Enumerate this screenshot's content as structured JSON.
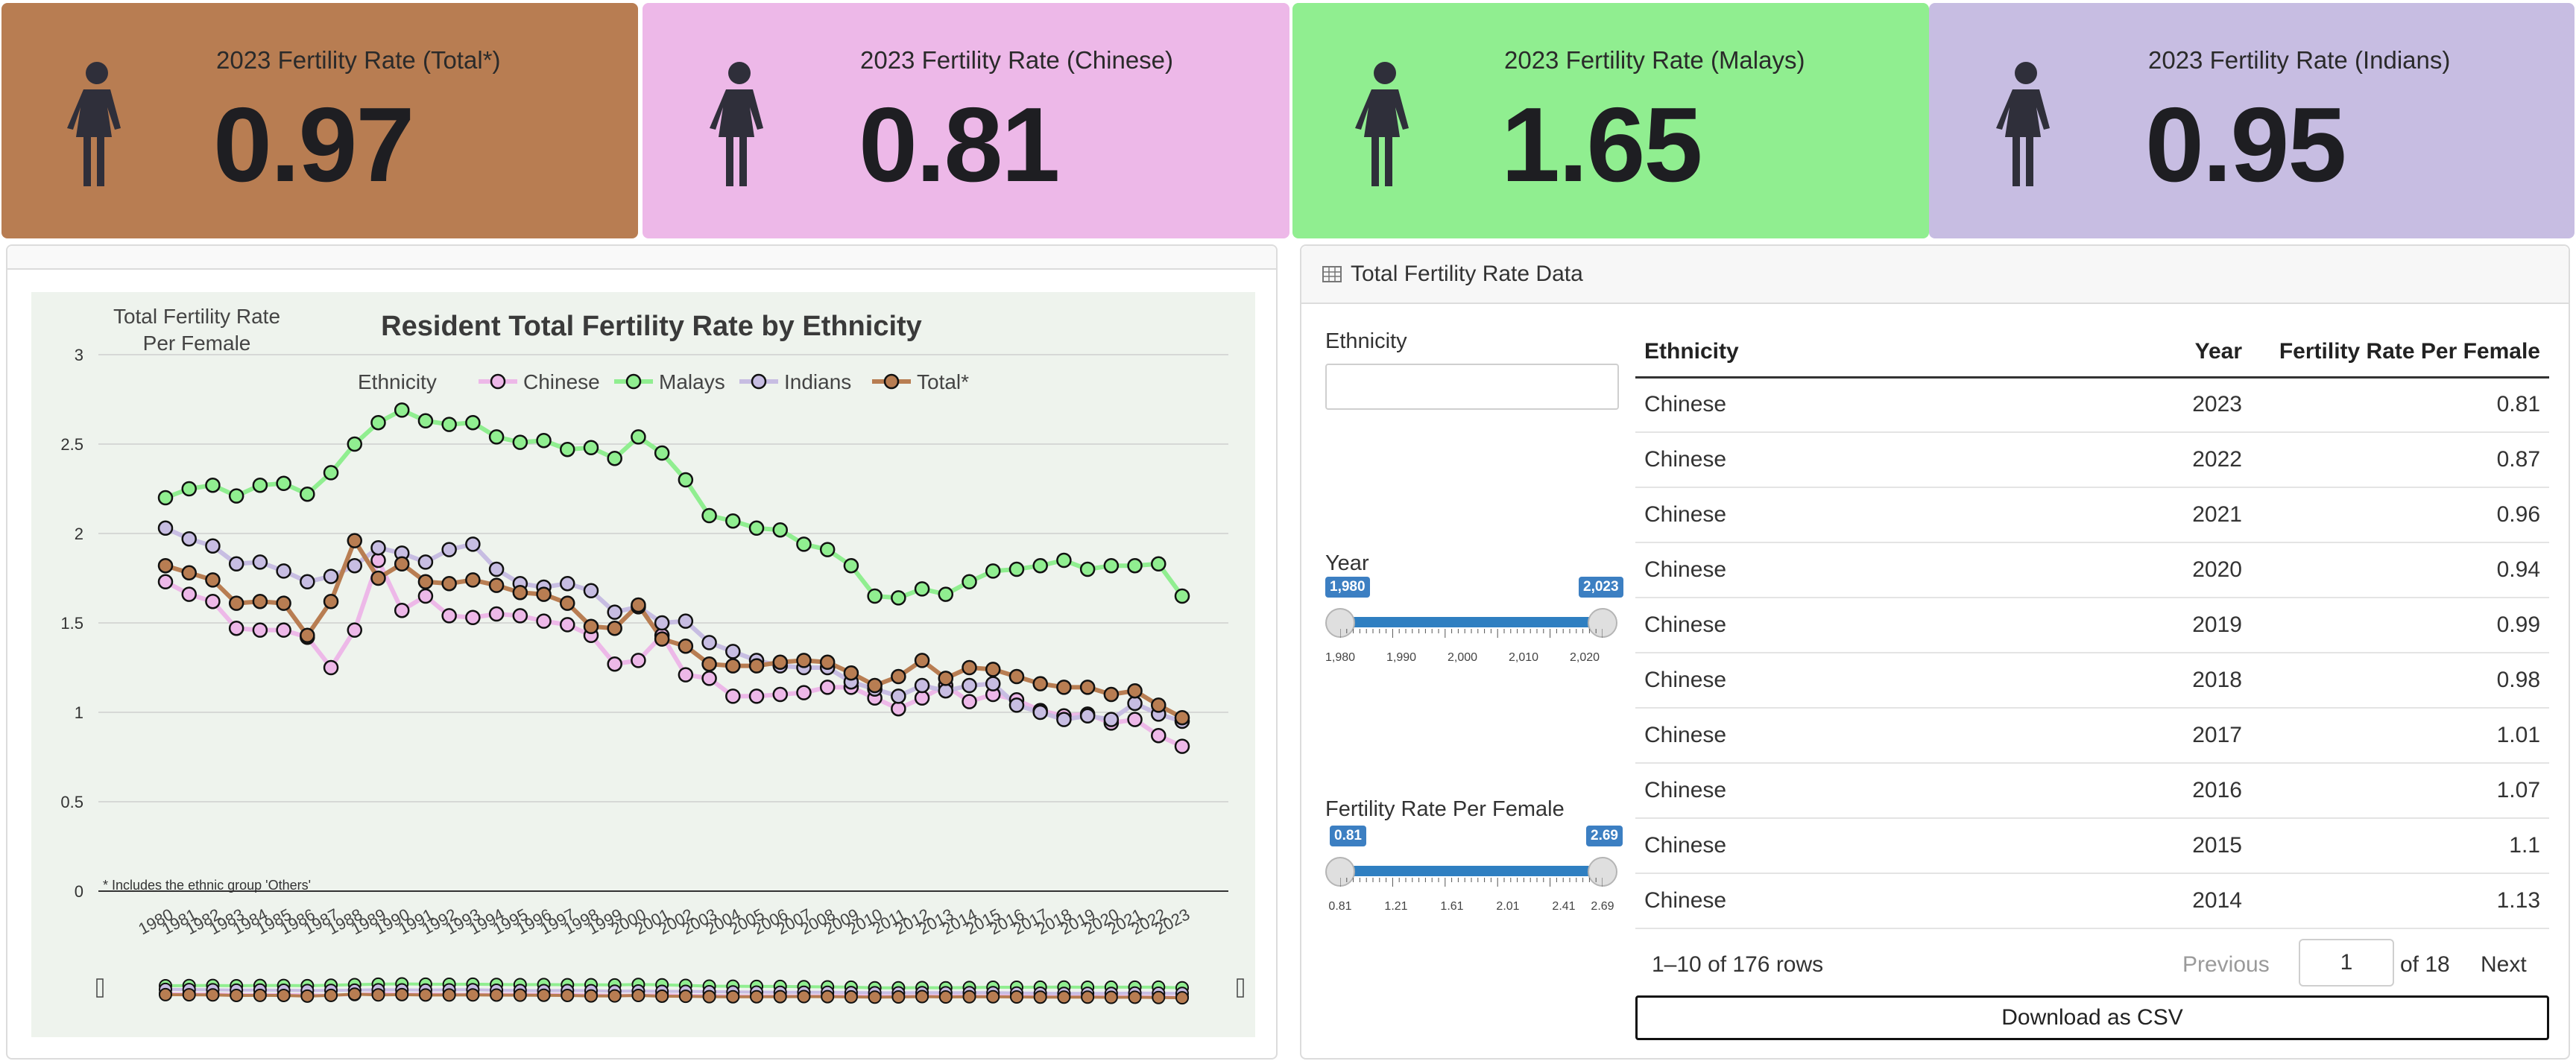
{
  "kpis": [
    {
      "title": "2023 Fertility Rate (Total*)",
      "value": "0.97",
      "bg": "#b87d52"
    },
    {
      "title": "2023 Fertility Rate (Chinese)",
      "value": "0.81",
      "bg": "#edb8e8"
    },
    {
      "title": "2023 Fertility Rate (Malays)",
      "value": "1.65",
      "bg": "#90ee90"
    },
    {
      "title": "2023 Fertility Rate (Indians)",
      "value": "0.95",
      "bg": "#c7bde2"
    }
  ],
  "person_icon_color": "#2f2f3a",
  "table_panel": {
    "title": "Total Fertility Rate Data",
    "filters": {
      "ethnicity_label": "Ethnicity",
      "year_label": "Year",
      "year_min": "1,980",
      "year_max": "2,023",
      "year_ticks": [
        "1,980",
        "1,990",
        "2,000",
        "2,010",
        "2,020"
      ],
      "rate_label": "Fertility Rate Per Female",
      "rate_min": "0.81",
      "rate_max": "2.69",
      "rate_ticks": [
        "0.81",
        "1.21",
        "1.61",
        "2.01",
        "2.41",
        "2.69"
      ]
    },
    "columns": [
      "Ethnicity",
      "Year",
      "Fertility Rate Per Female"
    ],
    "rows": [
      [
        "Chinese",
        "2023",
        "0.81"
      ],
      [
        "Chinese",
        "2022",
        "0.87"
      ],
      [
        "Chinese",
        "2021",
        "0.96"
      ],
      [
        "Chinese",
        "2020",
        "0.94"
      ],
      [
        "Chinese",
        "2019",
        "0.99"
      ],
      [
        "Chinese",
        "2018",
        "0.98"
      ],
      [
        "Chinese",
        "2017",
        "1.01"
      ],
      [
        "Chinese",
        "2016",
        "1.07"
      ],
      [
        "Chinese",
        "2015",
        "1.1"
      ],
      [
        "Chinese",
        "2014",
        "1.13"
      ]
    ],
    "info": "1–10 of 176 rows",
    "prev": "Previous",
    "page": "1",
    "of_pages": "of 18",
    "next": "Next",
    "download": "Download as CSV"
  },
  "chart_data": {
    "type": "line",
    "title": "Resident Total Fertility Rate by Ethnicity",
    "ylabel": "Total Fertility Rate\nPer Female",
    "xlabel": "",
    "ylim": [
      0,
      3
    ],
    "yticks": [
      "0",
      "0.5",
      "1",
      "1.5",
      "2",
      "2.5",
      "3"
    ],
    "legend_title": "Ethnicity",
    "footnote": "* Includes the ethnic group 'Others'",
    "x": [
      1980,
      1981,
      1982,
      1983,
      1984,
      1985,
      1986,
      1987,
      1988,
      1989,
      1990,
      1991,
      1992,
      1993,
      1994,
      1995,
      1996,
      1997,
      1998,
      1999,
      2000,
      2001,
      2002,
      2003,
      2004,
      2005,
      2006,
      2007,
      2008,
      2009,
      2010,
      2011,
      2012,
      2013,
      2014,
      2015,
      2016,
      2017,
      2018,
      2019,
      2020,
      2021,
      2022,
      2023
    ],
    "series": [
      {
        "name": "Chinese",
        "color": "#edb8e8",
        "values": [
          1.73,
          1.66,
          1.62,
          1.47,
          1.46,
          1.46,
          1.42,
          1.25,
          1.46,
          1.85,
          1.57,
          1.65,
          1.54,
          1.53,
          1.55,
          1.54,
          1.51,
          1.49,
          1.43,
          1.27,
          1.29,
          1.43,
          1.21,
          1.19,
          1.09,
          1.09,
          1.1,
          1.11,
          1.14,
          1.14,
          1.08,
          1.02,
          1.08,
          1.15,
          1.06,
          1.1,
          1.07,
          1.01,
          0.98,
          0.99,
          0.94,
          0.96,
          0.87,
          0.81
        ]
      },
      {
        "name": "Malays",
        "color": "#90ee90",
        "values": [
          2.2,
          2.25,
          2.27,
          2.21,
          2.27,
          2.28,
          2.22,
          2.34,
          2.5,
          2.62,
          2.69,
          2.63,
          2.61,
          2.62,
          2.54,
          2.51,
          2.52,
          2.47,
          2.48,
          2.42,
          2.54,
          2.45,
          2.3,
          2.1,
          2.07,
          2.03,
          2.02,
          1.94,
          1.91,
          1.82,
          1.65,
          1.64,
          1.69,
          1.66,
          1.73,
          1.79,
          1.8,
          1.82,
          1.85,
          1.8,
          1.82,
          1.82,
          1.83,
          1.65
        ]
      },
      {
        "name": "Indians",
        "color": "#c7bde2",
        "values": [
          2.03,
          1.97,
          1.93,
          1.83,
          1.84,
          1.79,
          1.73,
          1.76,
          1.82,
          1.92,
          1.89,
          1.84,
          1.91,
          1.94,
          1.8,
          1.72,
          1.7,
          1.72,
          1.68,
          1.56,
          1.59,
          1.5,
          1.51,
          1.39,
          1.34,
          1.29,
          1.26,
          1.25,
          1.25,
          1.17,
          1.13,
          1.09,
          1.15,
          1.12,
          1.15,
          1.16,
          1.04,
          1.0,
          0.96,
          0.98,
          0.96,
          1.05,
          0.99,
          0.95
        ]
      },
      {
        "name": "Total*",
        "color": "#b87d52",
        "values": [
          1.82,
          1.78,
          1.74,
          1.61,
          1.62,
          1.61,
          1.43,
          1.62,
          1.96,
          1.75,
          1.83,
          1.73,
          1.72,
          1.74,
          1.71,
          1.67,
          1.66,
          1.61,
          1.48,
          1.47,
          1.6,
          1.41,
          1.37,
          1.27,
          1.26,
          1.26,
          1.28,
          1.29,
          1.28,
          1.22,
          1.15,
          1.2,
          1.29,
          1.19,
          1.25,
          1.24,
          1.2,
          1.16,
          1.14,
          1.14,
          1.1,
          1.12,
          1.04,
          0.97
        ]
      }
    ]
  }
}
